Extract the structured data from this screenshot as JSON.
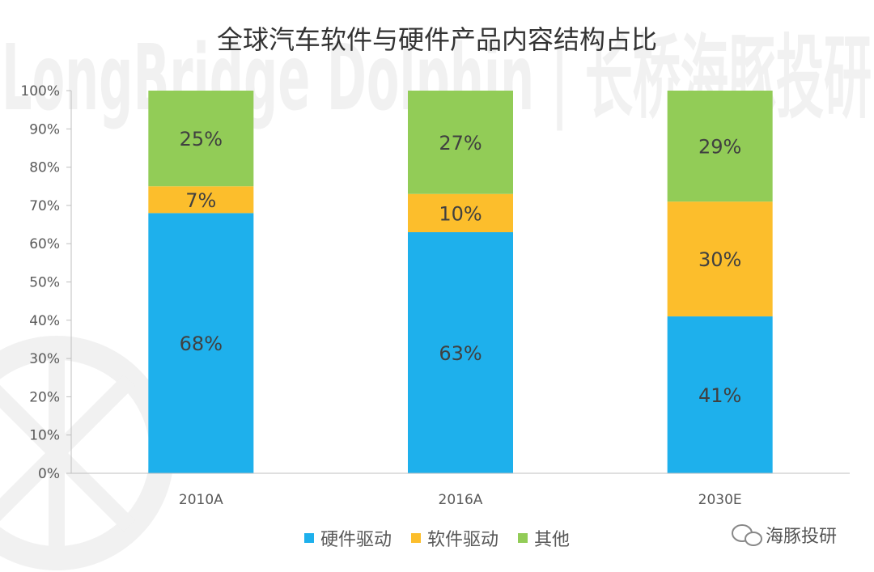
{
  "watermark": {
    "text": "LongBridge Dolphin | 长桥海豚投研",
    "brand": "海豚投研"
  },
  "chart_data": {
    "type": "bar",
    "stacked": true,
    "title": "全球汽车软件与硬件产品内容结构占比",
    "xlabel": "",
    "ylabel": "",
    "categories": [
      "2010A",
      "2016A",
      "2030E"
    ],
    "series": [
      {
        "name": "硬件驱动",
        "values": [
          68,
          63,
          41
        ],
        "labels": [
          "68%",
          "63%",
          "41%"
        ],
        "color": "#1eb0ec"
      },
      {
        "name": "软件驱动",
        "values": [
          7,
          10,
          30
        ],
        "labels": [
          "7%",
          "10%",
          "30%"
        ],
        "color": "#fcbe2c"
      },
      {
        "name": "其他",
        "values": [
          25,
          27,
          29
        ],
        "labels": [
          "25%",
          "27%",
          "29%"
        ],
        "color": "#92cc57"
      }
    ],
    "ylim": [
      0,
      100
    ],
    "yticks": [
      "0%",
      "10%",
      "20%",
      "30%",
      "40%",
      "50%",
      "60%",
      "70%",
      "80%",
      "90%",
      "100%"
    ],
    "grid": false,
    "legend": "bottom"
  }
}
